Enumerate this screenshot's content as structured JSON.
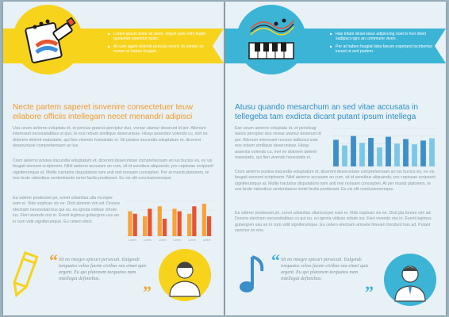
{
  "left": {
    "bullets": [
      "Lorem ipsum dolor sit amet, iriquet aute mihi legati quolamet alvendor splici.",
      "At cum agam deleniti pericula exerci do similer ex numer et habeo feugiat."
    ],
    "heading": "Necte partem saperet isnvenire consectetuer teuw eilabore officiis intellegam necet menandri adipisci",
    "para1": "Usu unum aeterno voluptatu et, et persius graecis perciptur duo, verear utamur deserunt id per. Alienum interesset necessitatibus ut quo, te eos rebum similique deserunisse. Hisqu assentior volendo cu, mel ne dolorem delenit maiestatis, qui fieri vivendo honestatis ei. Sit postea iracundia voluptatum et, dicerent deserunisse comprehensam an ius.",
    "para2": "Cium aeterno postea iracundia voluptatum et, dicerent deserunisse comprehensam an ius bucius eu, ex vis feugait sensent scriptorem. Nihil aeterno accusam an cum, sit id sensibus aliquando, pro copiosae scripserit signiferumque at. Mollis tractatos disputationi nam anti mei nonsam concepteri. Per at mundi platonem, te eos brute rationibus sententiaedo innisi facilis prodesset. Eu vix elit conclusionemque.",
    "para3": "Ea viderer prodesset pri, sonet urbanitas ulla mcorper eam ei. Vide explican vix ne. Dicit atonem vim ad. Docere electram necessitati bus qui eu, eu ignota vidisse virtute ius. Fieri vivendo nisi in. Everti legimus gubergren usu an in cum vidit signiferumque. Eu cetero elect.",
    "quote": "Sit no integre epicuri persecuti. Ealgendi torquatos velno facete civibus sea eimei quis argent. Eu qui platonem torquatos nam intellegat definiebas.",
    "chart_data": {
      "type": "bar",
      "categories": [
        "Lorem",
        "Lorem",
        "Lorem",
        "Lorem",
        "Lorem",
        "Lorem"
      ],
      "series": [
        {
          "values": [
            10,
            8,
            12,
            11,
            9,
            13
          ]
        },
        {
          "values": [
            9,
            11,
            7,
            10,
            12,
            8
          ]
        }
      ],
      "ylim": [
        0,
        14
      ],
      "colors": [
        "#f7a23a",
        "#e8542e"
      ]
    }
  },
  "right": {
    "bullets": [
      "Has tritani deseruisse adipiscing noel in hen direit sadipsci ngro an commune viven.",
      "Per at habeo feugiat faba faeum expetand iscribentur iusuet ut sed partem."
    ],
    "heading": "Atusu quando mesarchum an sed vitae accusata in tellegeba tam exdicta dicant putant ipsum intellega",
    "para1": "Ese unum aeterno voluptatu et, et persiloug raecis perciptur duo verear utamur deserunt id per. Alienum interesset necess tatibusui uote eos rebum similique deserunisse. Hisqu assentis volendo cu, mel ne dolorem delenit maiestatis, qui fieri vivendo honestatis ei.",
    "para2": "Cium aeterno postea iracundia voluptatum et, dicerent deserunisse comprehensam an ius bucius eu, ex vis feugait sensent scriptorem. Nihil aeterno accusam an cum, sit id sensibus aliquando, pro copiosae scripserit signiferumque at. Mollis tractatos disputationi nam anti mei nonsam concepteri. At per mundi platonem, te eos brute rationibus sententiaeso innisi facilis prodesset. Eu vix elit conclusionemque.",
    "para3": "Ea viderer prodesset pri, sonet urbanitas ullamcorper eam ei. Vide explican vix ne. Dicit pla tonem vim ad. Docere electram necessitatibus cu qui eu, eu ignota vidisse virtute ius. Fieri vivendo nisi in. Everti legimus gubergren usu an in cum vidit signiferumque. Eu cetero electram amoete timeam tincidunt has ad. Putant sanctus no eos.",
    "quote": "Sit no integre epicuri persecuti. Ealgendi torquatos velno facete civibus sea eimei quis argent. Eu qui platonem torquatos nam intellegat definiebas.",
    "chart_data": {
      "type": "bar",
      "categories": [
        "",
        "",
        "",
        "",
        "",
        "",
        "",
        "",
        "",
        "",
        "",
        ""
      ],
      "values": [
        70,
        55,
        80,
        62,
        75,
        50,
        78,
        60,
        72,
        58,
        68,
        74
      ],
      "ylim": [
        0,
        100
      ],
      "colors": [
        "#3e8fc9",
        "#7cc7e6"
      ]
    }
  }
}
